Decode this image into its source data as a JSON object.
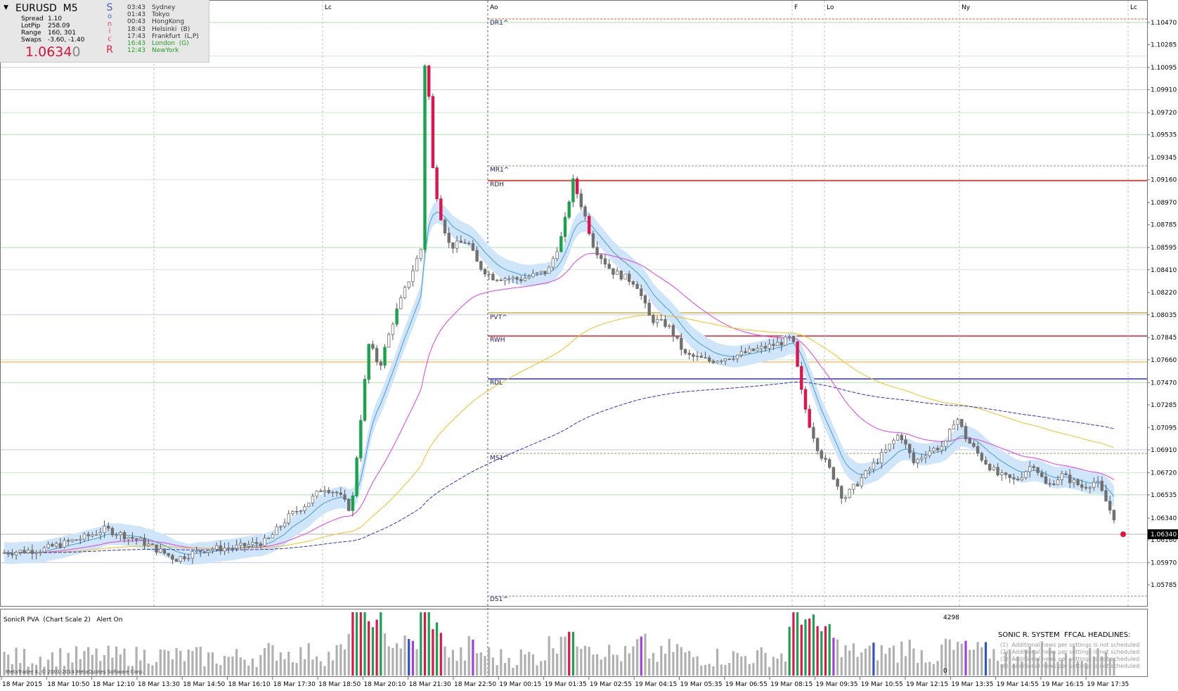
{
  "symbol": "EURUSD",
  "timeframe": "M5",
  "info": {
    "stats": [
      {
        "label": "Spread",
        "value": "1.10"
      },
      {
        "label": "LotPip",
        "value": "258.09"
      },
      {
        "label": "Range",
        "value": "160, 301"
      },
      {
        "label": "Swaps",
        "value": "-3.60, -1.40"
      }
    ],
    "price_main": "1.0634",
    "price_last": "0",
    "sonic_letters": [
      "S",
      "o",
      "n",
      "i",
      "c",
      "R"
    ],
    "sessions": [
      {
        "time": "03:43",
        "name": "Sydney",
        "color": "#333333"
      },
      {
        "time": "01:43",
        "name": "Tokyo",
        "color": "#333333"
      },
      {
        "time": "00:43",
        "name": "HongKong",
        "color": "#333333"
      },
      {
        "time": "18:43",
        "name": "Helsinki  (B)",
        "color": "#333333"
      },
      {
        "time": "17:43",
        "name": "Frankfurt  (L,P)",
        "color": "#333333"
      },
      {
        "time": "16:43",
        "name": "London  (G)",
        "color": "#22a022"
      },
      {
        "time": "12:43",
        "name": "NewYork",
        "color": "#22a022"
      }
    ]
  },
  "session_markers": [
    "Lc",
    "Ao",
    "F",
    "Lo",
    "Ny",
    "Lc"
  ],
  "pivot_labels": [
    "DR1^",
    "MR1^",
    "RDH",
    "PVT^",
    "RWH",
    "RDL",
    "MS1^",
    "DS1^"
  ],
  "price_axis": {
    "ticks": [
      "1.10470",
      "1.10285",
      "1.10095",
      "1.09910",
      "1.09720",
      "1.09535",
      "1.09345",
      "1.09160",
      "1.08970",
      "1.08785",
      "1.08595",
      "1.08410",
      "1.08220",
      "1.08035",
      "1.07845",
      "1.07660",
      "1.07470",
      "1.07285",
      "1.07095",
      "1.06910",
      "1.06720",
      "1.06535",
      "1.06340",
      "1.06160",
      "1.05970",
      "1.05785"
    ],
    "current": "1.06340"
  },
  "time_axis": [
    "18 Mar 2015",
    "18 Mar 10:50",
    "18 Mar 12:10",
    "18 Mar 13:30",
    "18 Mar 14:50",
    "18 Mar 16:10",
    "18 Mar 17:30",
    "18 Mar 18:50",
    "18 Mar 20:10",
    "18 Mar 21:30",
    "18 Mar 22:50",
    "19 Mar 00:15",
    "19 Mar 01:35",
    "19 Mar 02:55",
    "19 Mar 04:15",
    "19 Mar 05:35",
    "19 Mar 06:55",
    "19 Mar 08:15",
    "19 Mar 09:35",
    "19 Mar 10:55",
    "19 Mar 12:15",
    "19 Mar 13:35",
    "19 Mar 14:55",
    "19 Mar 16:15",
    "19 Mar 17:35"
  ],
  "sub_window": {
    "label": "SonicR PVA  (Chart Scale 2)   Alert On",
    "scale_top": "4298",
    "scale_bottom": "0",
    "headline_title": "SONIC R. SYSTEM  FFCAL HEADLINES:",
    "headlines": [
      "(1)  Additional news per settings is not scheduled",
      "(2)  Additional news per settings is not scheduled",
      "(3)  Additional news per settings is not scheduled",
      "(4)  Additional news per settings is not scheduled"
    ]
  },
  "copyright": "MetaTrader 4, © 2001-2014 MetaQuotes Software Corp.",
  "colors": {
    "bull": "#1aa34a",
    "bear": "#e0144c",
    "neutral": "#999999",
    "climax_purple": "#a040e0",
    "ema_band": "#cfe6fa",
    "ema_mid": "#4a9ad0",
    "magenta": "#e040e0",
    "yellow": "#f0c020",
    "blue_dash": "#3030d0",
    "resistance_red": "#e02020",
    "rdl_blue": "#3030c0",
    "orange_line": "#f0a030",
    "green_grid": "#a8e6a8",
    "lavender_grid": "#c8c8f0"
  }
}
